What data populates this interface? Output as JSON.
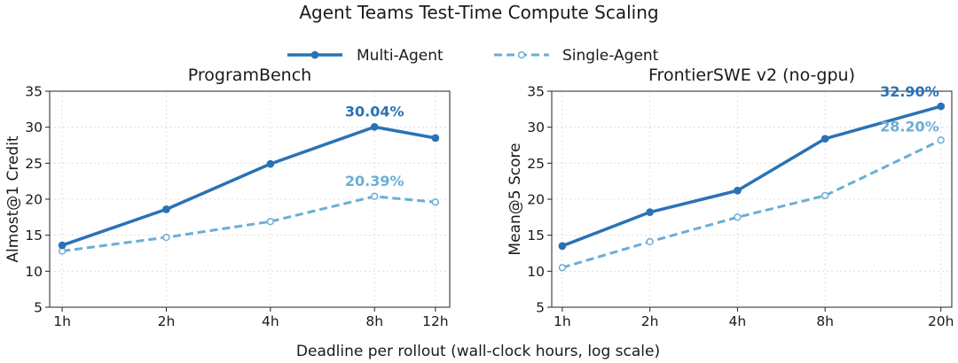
{
  "title": "Agent Teams Test-Time Compute Scaling",
  "xlabel": "Deadline per rollout (wall-clock hours, log scale)",
  "legend": [
    {
      "label": "Multi-Agent",
      "color": "#2a72b5",
      "style": "solid",
      "marker": "filled"
    },
    {
      "label": "Single-Agent",
      "color": "#6aaed6",
      "style": "dashed",
      "marker": "hollow"
    }
  ],
  "chart_data": [
    {
      "type": "line",
      "title": "ProgramBench",
      "ylabel": "Almost@1 Credit",
      "x": [
        1,
        2,
        4,
        8,
        12
      ],
      "x_tick_labels": [
        "1h",
        "2h",
        "4h",
        "8h",
        "12h"
      ],
      "x_scale": "log",
      "xlim": [
        0.92,
        13.2
      ],
      "ylim": [
        5,
        35
      ],
      "y_ticks": [
        5,
        10,
        15,
        20,
        25,
        30,
        35
      ],
      "grid": true,
      "series": [
        {
          "name": "Multi-Agent",
          "values": [
            13.6,
            18.6,
            24.9,
            30.04,
            28.5
          ]
        },
        {
          "name": "Single-Agent",
          "values": [
            12.8,
            14.7,
            16.9,
            20.39,
            19.6
          ]
        }
      ],
      "annotations": [
        {
          "series": "Multi-Agent",
          "index": 3,
          "text": "30.04%"
        },
        {
          "series": "Single-Agent",
          "index": 3,
          "text": "20.39%"
        }
      ]
    },
    {
      "type": "line",
      "title": "FrontierSWE v2 (no-gpu)",
      "ylabel": "Mean@5 Score",
      "x": [
        1,
        2,
        4,
        8,
        20
      ],
      "x_tick_labels": [
        "1h",
        "2h",
        "4h",
        "8h",
        "20h"
      ],
      "x_scale": "log",
      "xlim": [
        0.92,
        21.8
      ],
      "ylim": [
        5,
        35
      ],
      "y_ticks": [
        5,
        10,
        15,
        20,
        25,
        30,
        35
      ],
      "grid": true,
      "series": [
        {
          "name": "Multi-Agent",
          "values": [
            13.5,
            18.2,
            21.2,
            28.4,
            32.9
          ]
        },
        {
          "name": "Single-Agent",
          "values": [
            10.5,
            14.1,
            17.5,
            20.5,
            28.2
          ]
        }
      ],
      "annotations": [
        {
          "series": "Multi-Agent",
          "index": 4,
          "text": "32.90%"
        },
        {
          "series": "Single-Agent",
          "index": 4,
          "text": "28.20%"
        }
      ]
    }
  ]
}
